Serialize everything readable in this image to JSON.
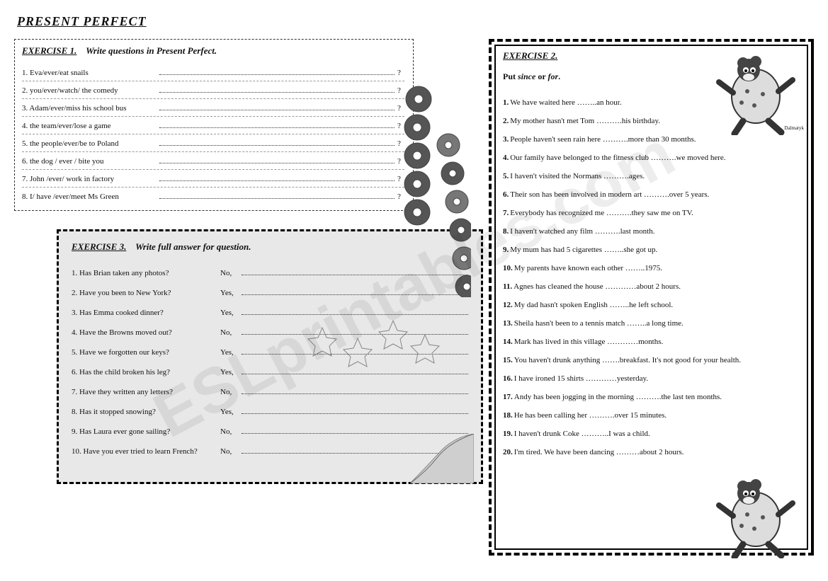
{
  "title": "PRESENT PERFECT",
  "watermark": "ESLprintables.com",
  "exercise1": {
    "label": "EXERCISE 1.",
    "instruction": "Write questions in Present Perfect.",
    "items": [
      "1. Eva/ever/eat snails",
      "2. you/ever/watch/ the comedy",
      "3. Adam/ever/miss his school bus",
      "4. the team/ever/lose a game",
      "5. the people/ever/be to Poland",
      "6. the dog / ever / bite you",
      "7. John /ever/ work in factory",
      "8. I/ have /ever/meet  Ms  Green"
    ],
    "trailing": "?"
  },
  "exercise2": {
    "label": "EXERCISE 2.",
    "instruction_prefix": "Put ",
    "instruction_word1": "since",
    "instruction_mid": " or ",
    "instruction_word2": "for",
    "instruction_suffix": ".",
    "items": [
      {
        "n": "1.",
        "text": "We have waited here ……..an hour."
      },
      {
        "n": "2.",
        "text": "My mother hasn't met Tom ……….his birthday."
      },
      {
        "n": "3.",
        "text": "People haven't seen rain here ……….more than 30 months."
      },
      {
        "n": "4.",
        "text": "Our family have belonged to the fitness club ……….we moved here."
      },
      {
        "n": "5.",
        "text": "I haven't visited the Normans ……….ages."
      },
      {
        "n": "6.",
        "text": "Their son has been involved in modern art ……….over 5 years."
      },
      {
        "n": "7.",
        "text": "Everybody has recognized me ……….they saw me on TV."
      },
      {
        "n": "8.",
        "text": "I haven't watched any film ……….last month."
      },
      {
        "n": "9.",
        "text": "My mum has had 5 cigarettes ……..she got up."
      },
      {
        "n": "10.",
        "text": "My parents have known each other ……..1975."
      },
      {
        "n": "11.",
        "text": "Agnes has cleaned the house …………about 2 hours."
      },
      {
        "n": "12.",
        "text": "My dad hasn't spoken English ……..he left school."
      },
      {
        "n": "13.",
        "text": "Sheila hasn't been to a tennis match ……..a long time."
      },
      {
        "n": "14.",
        "text": "Mark has lived in this village …………months."
      },
      {
        "n": "15.",
        "text": "You haven't drunk anything …….breakfast. It's not good for your health."
      },
      {
        "n": "16.",
        "text": "I have ironed 15 shirts …………yesterday."
      },
      {
        "n": "17.",
        "text": "Andy has been jogging in the morning ……….the last ten months."
      },
      {
        "n": "18.",
        "text": "He has been calling her ……….over 15 minutes."
      },
      {
        "n": "19.",
        "text": "I haven't drunk Coke ………..I was a child."
      },
      {
        "n": "20.",
        "text": "I'm tired. We have been dancing ………about 2 hours."
      }
    ]
  },
  "exercise3": {
    "label": "EXERCISE 3.",
    "instruction": "Write full answer for question.",
    "items": [
      {
        "q": "1. Has Brian taken any photos?",
        "a": "No,"
      },
      {
        "q": "2. Have you been to New York?",
        "a": "Yes,"
      },
      {
        "q": "3. Has Emma cooked dinner?",
        "a": "Yes,"
      },
      {
        "q": "4. Have the Browns moved out?",
        "a": "No,"
      },
      {
        "q": "5. Have we forgotten our keys?",
        "a": "Yes,"
      },
      {
        "q": "6. Has the child broken his leg?",
        "a": "Yes,"
      },
      {
        "q": "7. Have they written any letters?",
        "a": "No,"
      },
      {
        "q": "8. Has it stopped snowing?",
        "a": "Yes,"
      },
      {
        "q": "9. Has Laura ever gone sailing?",
        "a": "No,"
      },
      {
        "q": "10. Have you  ever tried to learn French?",
        "a": "No,"
      }
    ]
  },
  "decorations": {
    "cartoon_label": "Dalmatyk",
    "colors": {
      "donut_dark": "#555",
      "donut_light": "#ccc"
    }
  }
}
